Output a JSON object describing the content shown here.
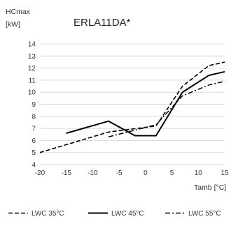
{
  "chart_data": {
    "type": "line",
    "title": "ERLA11DA*",
    "ylabel_line1": "HCmax",
    "ylabel_line2": "[kW]",
    "xlabel": "Tamb [°C]",
    "xlim": [
      -20,
      15
    ],
    "ylim": [
      4,
      14
    ],
    "xticks": [
      -20,
      -15,
      -10,
      -5,
      0,
      5,
      10,
      15
    ],
    "yticks": [
      4,
      5,
      6,
      7,
      8,
      9,
      10,
      11,
      12,
      13,
      14
    ],
    "grid": true,
    "legend_position": "bottom",
    "series": [
      {
        "name": "LWC 35°C",
        "style": "dashed",
        "x": [
          -20,
          -7,
          2,
          7,
          12,
          15
        ],
        "y": [
          5.0,
          6.7,
          7.2,
          10.5,
          12.2,
          12.5
        ]
      },
      {
        "name": "LWC 45°C",
        "style": "solid",
        "x": [
          -15,
          -7,
          -2,
          2,
          7,
          12,
          15
        ],
        "y": [
          6.6,
          7.6,
          6.4,
          6.4,
          10.0,
          11.4,
          11.7
        ]
      },
      {
        "name": "LWC 55°C",
        "style": "dashdot",
        "x": [
          -7,
          2,
          7,
          12,
          15
        ],
        "y": [
          6.3,
          7.3,
          9.7,
          10.6,
          10.9
        ]
      }
    ]
  }
}
